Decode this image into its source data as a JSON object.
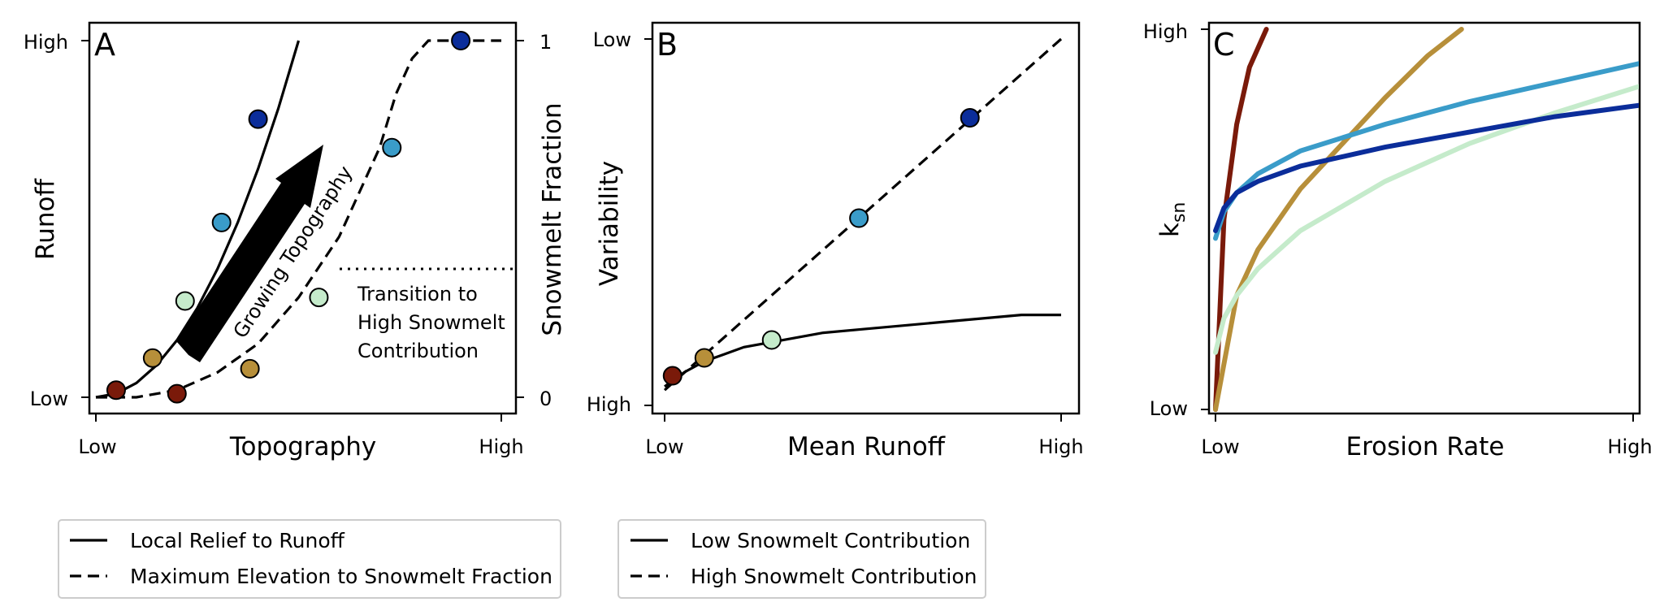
{
  "colors": {
    "red": "#7a1a0a",
    "gold": "#b78f3a",
    "mint": "#c5ebcb",
    "sky": "#3a9cc9",
    "navy": "#0b2d9a"
  },
  "chart_data": [
    {
      "type": "line",
      "panel_label": "A",
      "xlabel": "Topography",
      "ylabel": "Runoff",
      "y2label": "Snowmelt Fraction",
      "xticks": [
        "Low",
        "High"
      ],
      "yticks": [
        "Low",
        "High"
      ],
      "y2ticks": [
        "0",
        "1"
      ],
      "xlim": [
        0,
        1
      ],
      "ylim": [
        0,
        1
      ],
      "y2lim": [
        0,
        1
      ],
      "arrow_label": "Growing Topography",
      "annotation": [
        "Transition to",
        "High Snowmelt",
        "Contribution"
      ],
      "threshold_y2": 0.36,
      "series": [
        {
          "name": "Local Relief to Runoff",
          "style": "solid",
          "x": [
            0,
            0.05,
            0.1,
            0.15,
            0.2,
            0.25,
            0.3,
            0.35,
            0.4,
            0.45,
            0.5
          ],
          "y": [
            0,
            0.01,
            0.04,
            0.09,
            0.16,
            0.25,
            0.36,
            0.49,
            0.64,
            0.81,
            1.0
          ],
          "points": {
            "x": [
              0.05,
              0.14,
              0.22,
              0.31,
              0.4
            ],
            "y": [
              0.02,
              0.11,
              0.27,
              0.49,
              0.78
            ],
            "colors": [
              "red",
              "gold",
              "mint",
              "sky",
              "navy"
            ]
          }
        },
        {
          "name": "Maximum Elevation to Snowmelt Fraction",
          "style": "dashed",
          "x": [
            0,
            0.1,
            0.2,
            0.3,
            0.4,
            0.5,
            0.6,
            0.7,
            0.74,
            0.78,
            0.82,
            0.9,
            1.0
          ],
          "y": [
            0,
            0.0,
            0.02,
            0.07,
            0.15,
            0.28,
            0.45,
            0.7,
            0.85,
            0.95,
            1.0,
            1.0,
            1.0
          ],
          "points": {
            "x": [
              0.2,
              0.38,
              0.55,
              0.73,
              0.9
            ],
            "y": [
              0.01,
              0.08,
              0.28,
              0.7,
              1.0
            ],
            "colors": [
              "red",
              "gold",
              "mint",
              "sky",
              "navy"
            ]
          }
        }
      ]
    },
    {
      "type": "line",
      "panel_label": "B",
      "xlabel": "Mean Runoff",
      "ylabel": "Variability",
      "xticks": [
        "Low",
        "High"
      ],
      "yticks": [
        "Low",
        "High"
      ],
      "xlim": [
        0,
        1
      ],
      "ylim": [
        0,
        1
      ],
      "series": [
        {
          "name": "Low Snowmelt Contribution",
          "style": "solid",
          "x": [
            0,
            0.05,
            0.1,
            0.2,
            0.3,
            0.4,
            0.5,
            0.6,
            0.7,
            0.8,
            0.9,
            1.0
          ],
          "y": [
            0.03,
            0.07,
            0.1,
            0.14,
            0.16,
            0.18,
            0.19,
            0.2,
            0.21,
            0.22,
            0.23,
            0.23
          ],
          "points": {
            "x": [
              0.02,
              0.1,
              0.27
            ],
            "y": [
              0.06,
              0.11,
              0.16
            ],
            "colors": [
              "red",
              "gold",
              "mint"
            ]
          }
        },
        {
          "name": "High Snowmelt Contribution",
          "style": "dashed",
          "x": [
            0.0,
            1.0
          ],
          "y": [
            0.02,
            1.0
          ],
          "points": {
            "x": [
              0.49,
              0.77
            ],
            "y": [
              0.5,
              0.78
            ],
            "colors": [
              "sky",
              "navy"
            ]
          }
        }
      ]
    },
    {
      "type": "line",
      "panel_label": "C",
      "xlabel": "Erosion Rate",
      "ylabel": "k",
      "ylabel_sub": "sn",
      "xticks": [
        "Low",
        "High"
      ],
      "yticks": [
        "Low",
        "High"
      ],
      "xlim": [
        0,
        1
      ],
      "ylim": [
        0,
        1
      ],
      "series": [
        {
          "color": "red",
          "x": [
            0,
            0.02,
            0.05,
            0.08,
            0.12
          ],
          "y": [
            0,
            0.5,
            0.75,
            0.9,
            1.0
          ]
        },
        {
          "color": "gold",
          "x": [
            0,
            0.05,
            0.1,
            0.2,
            0.3,
            0.4,
            0.5,
            0.58
          ],
          "y": [
            0,
            0.3,
            0.42,
            0.58,
            0.7,
            0.82,
            0.93,
            1.0
          ]
        },
        {
          "color": "mint",
          "x": [
            0,
            0.02,
            0.05,
            0.1,
            0.2,
            0.4,
            0.6,
            0.8,
            1.0
          ],
          "y": [
            0.15,
            0.24,
            0.3,
            0.37,
            0.47,
            0.6,
            0.7,
            0.78,
            0.85
          ]
        },
        {
          "color": "sky",
          "x": [
            0,
            0.02,
            0.05,
            0.1,
            0.2,
            0.4,
            0.6,
            0.8,
            1.0
          ],
          "y": [
            0.45,
            0.52,
            0.57,
            0.62,
            0.68,
            0.75,
            0.81,
            0.86,
            0.91
          ]
        },
        {
          "color": "navy",
          "x": [
            0,
            0.02,
            0.05,
            0.1,
            0.2,
            0.4,
            0.6,
            0.8,
            1.0
          ],
          "y": [
            0.47,
            0.53,
            0.57,
            0.6,
            0.64,
            0.69,
            0.73,
            0.77,
            0.8
          ]
        }
      ]
    }
  ],
  "legends": [
    {
      "items": [
        {
          "label": "Local Relief to Runoff",
          "style": "solid"
        },
        {
          "label": "Maximum Elevation to Snowmelt Fraction",
          "style": "dashed"
        }
      ]
    },
    {
      "items": [
        {
          "label": "Low Snowmelt Contribution",
          "style": "solid"
        },
        {
          "label": "High Snowmelt Contribution",
          "style": "dashed"
        }
      ]
    }
  ]
}
